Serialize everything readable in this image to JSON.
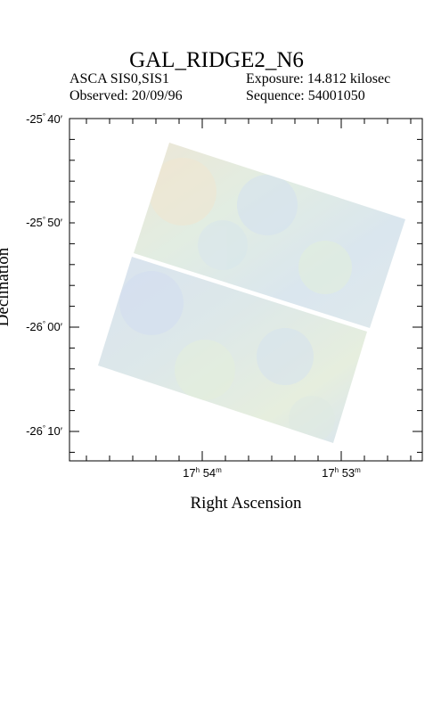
{
  "header": {
    "title": "GAL_RIDGE2_N6",
    "instrument": "ASCA SIS0,SIS1",
    "exposure": "Exposure: 14.812 kilosec",
    "observed": "Observed: 20/09/96",
    "sequence": "Sequence: 54001050"
  },
  "axes": {
    "xlabel": "Right Ascension",
    "ylabel": "Declination",
    "y_ticks": [
      {
        "deg": "-25",
        "min": "40",
        "value": -25.6667
      },
      {
        "deg": "-25",
        "min": "50",
        "value": -25.8333
      },
      {
        "deg": "-26",
        "min": "00",
        "value": -26.0
      },
      {
        "deg": "-26",
        "min": "10",
        "value": -26.1667
      }
    ],
    "x_ticks": [
      {
        "h": "17",
        "m": "54"
      },
      {
        "h": "17",
        "m": "53"
      }
    ]
  },
  "image_colors": {
    "frame": "#000000",
    "tone_a": "#dce8ee",
    "tone_b": "#d6e3ef",
    "tone_c": "#e4efe4",
    "tone_d": "#ede8dc"
  }
}
